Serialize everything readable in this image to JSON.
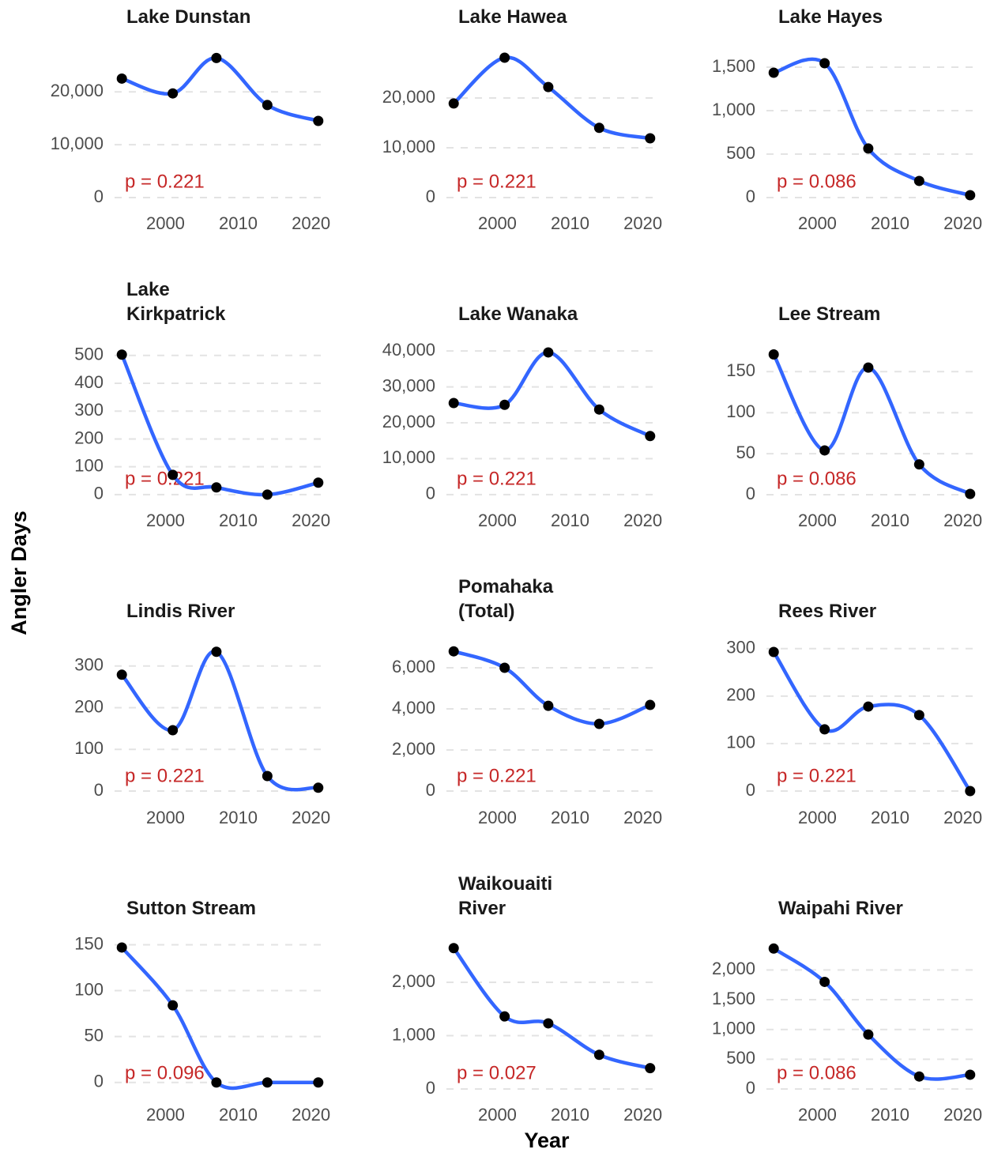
{
  "xlabel": "Year",
  "ylabel": "Angler Days",
  "chart_data": [
    {
      "type": "line",
      "title": "Lake Dunstan",
      "x": [
        1994,
        2001,
        2007,
        2014,
        2021
      ],
      "values": [
        22500,
        19700,
        26400,
        17500,
        14500
      ],
      "color": "#3366ff",
      "point_color": "#000000",
      "annotation": "p = 0.221",
      "xlim": [
        1993,
        2022
      ],
      "xticks": [
        2000,
        2010,
        2020
      ],
      "ylim": [
        -1200,
        28400
      ],
      "yticks": [
        0,
        {
          "value": 10000,
          "label": "10,000"
        },
        {
          "value": 20000,
          "label": "20,000"
        }
      ],
      "grid": true
    },
    {
      "type": "line",
      "title": "Lake Hawea",
      "x": [
        1994,
        2001,
        2007,
        2014,
        2021
      ],
      "values": [
        18900,
        28100,
        22200,
        14000,
        11900
      ],
      "color": "#3366ff",
      "point_color": "#000000",
      "annotation": "p = 0.221",
      "xlim": [
        1993,
        2022
      ],
      "xticks": [
        2000,
        2010,
        2020
      ],
      "ylim": [
        -1270,
        30160
      ],
      "yticks": [
        0,
        {
          "value": 10000,
          "label": "10,000"
        },
        {
          "value": 20000,
          "label": "20,000"
        }
      ],
      "grid": true
    },
    {
      "type": "line",
      "title": "Lake Hayes",
      "x": [
        1994,
        2001,
        2007,
        2014,
        2021
      ],
      "values": [
        1436,
        1545,
        564,
        191,
        27
      ],
      "color": "#3366ff",
      "point_color": "#000000",
      "annotation": "p = 0.086",
      "xlim": [
        1993,
        2022
      ],
      "xticks": [
        2000,
        2010,
        2020
      ],
      "ylim": [
        -73,
        1727
      ],
      "yticks": [
        0,
        500,
        {
          "value": 1000,
          "label": "1,000"
        },
        {
          "value": 1500,
          "label": "1,500"
        }
      ],
      "grid": true
    },
    {
      "type": "line",
      "title": "Lake Kirkpatrick",
      "x": [
        1994,
        2001,
        2007,
        2014,
        2021
      ],
      "values": [
        503,
        71,
        26,
        0,
        43
      ],
      "color": "#3366ff",
      "point_color": "#000000",
      "annotation": "p = 0.221",
      "xlim": [
        1993,
        2022
      ],
      "xticks": [
        2000,
        2010,
        2020
      ],
      "ylim": [
        -23,
        542
      ],
      "yticks": [
        0,
        100,
        200,
        300,
        400,
        500
      ],
      "grid": true
    },
    {
      "type": "line",
      "title": "Lake Wanaka",
      "x": [
        1994,
        2001,
        2007,
        2014,
        2021
      ],
      "values": [
        25500,
        25000,
        39600,
        23700,
        16300
      ],
      "color": "#3366ff",
      "point_color": "#000000",
      "annotation": "p = 0.221",
      "xlim": [
        1993,
        2022
      ],
      "xticks": [
        2000,
        2010,
        2020
      ],
      "ylim": [
        -1790,
        42010
      ],
      "yticks": [
        0,
        {
          "value": 10000,
          "label": "10,000"
        },
        {
          "value": 20000,
          "label": "20,000"
        },
        {
          "value": 30000,
          "label": "30,000"
        },
        {
          "value": 40000,
          "label": "40,000"
        }
      ],
      "grid": true
    },
    {
      "type": "line",
      "title": "Lee Stream",
      "x": [
        1994,
        2001,
        2007,
        2014,
        2021
      ],
      "values": [
        171,
        54,
        155,
        37,
        1
      ],
      "color": "#3366ff",
      "point_color": "#000000",
      "annotation": "p = 0.086",
      "xlim": [
        1993,
        2022
      ],
      "xticks": [
        2000,
        2010,
        2020
      ],
      "ylim": [
        -7.7,
        184
      ],
      "yticks": [
        0,
        50,
        100,
        150
      ],
      "grid": true
    },
    {
      "type": "line",
      "title": "Lindis River",
      "x": [
        1994,
        2001,
        2007,
        2014,
        2021
      ],
      "values": [
        279,
        146,
        334,
        36,
        8
      ],
      "color": "#3366ff",
      "point_color": "#000000",
      "annotation": "p = 0.221",
      "xlim": [
        1993,
        2022
      ],
      "xticks": [
        2000,
        2010,
        2020
      ],
      "ylim": [
        -17,
        362
      ],
      "yticks": [
        0,
        100,
        200,
        300
      ],
      "grid": true
    },
    {
      "type": "line",
      "title": "Pomahaka (Total)",
      "x": [
        1994,
        2001,
        2007,
        2014,
        2021
      ],
      "values": [
        6800,
        6000,
        4150,
        3270,
        4190
      ],
      "color": "#3366ff",
      "point_color": "#000000",
      "annotation": "p = 0.221",
      "xlim": [
        1993,
        2022
      ],
      "xticks": [
        2000,
        2010,
        2020
      ],
      "ylim": [
        -346,
        7346
      ],
      "yticks": [
        0,
        {
          "value": 2000,
          "label": "2,000"
        },
        {
          "value": 4000,
          "label": "4,000"
        },
        {
          "value": 6000,
          "label": "6,000"
        }
      ],
      "grid": true
    },
    {
      "type": "line",
      "title": "Rees River",
      "x": [
        1994,
        2001,
        2007,
        2014,
        2021
      ],
      "values": [
        293,
        130,
        178,
        160,
        0
      ],
      "color": "#3366ff",
      "point_color": "#000000",
      "annotation": "p = 0.221",
      "xlim": [
        1993,
        2022
      ],
      "xticks": [
        2000,
        2010,
        2020
      ],
      "ylim": [
        -15,
        318
      ],
      "yticks": [
        0,
        100,
        200,
        300
      ],
      "grid": true
    },
    {
      "type": "line",
      "title": "Sutton Stream",
      "x": [
        1994,
        2001,
        2007,
        2014,
        2021
      ],
      "values": [
        147,
        84,
        0,
        0,
        0
      ],
      "color": "#3366ff",
      "point_color": "#000000",
      "annotation": "p = 0.096",
      "xlim": [
        1993,
        2022
      ],
      "xticks": [
        2000,
        2010,
        2020
      ],
      "ylim": [
        -14,
        159
      ],
      "yticks": [
        0,
        50,
        100,
        150
      ],
      "grid": true
    },
    {
      "type": "line",
      "title": "Waikouaiti River",
      "x": [
        1994,
        2001,
        2007,
        2014,
        2021
      ],
      "values": [
        2640,
        1360,
        1230,
        640,
        390
      ],
      "color": "#3366ff",
      "point_color": "#000000",
      "annotation": "p = 0.027",
      "xlim": [
        1993,
        2022
      ],
      "xticks": [
        2000,
        2010,
        2020
      ],
      "ylim": [
        -119,
        2859
      ],
      "yticks": [
        0,
        {
          "value": 1000,
          "label": "1,000"
        },
        {
          "value": 2000,
          "label": "2,000"
        }
      ],
      "grid": true
    },
    {
      "type": "line",
      "title": "Waipahi River",
      "x": [
        1994,
        2001,
        2007,
        2014,
        2021
      ],
      "values": [
        2360,
        1800,
        915,
        210,
        240
      ],
      "color": "#3366ff",
      "point_color": "#000000",
      "annotation": "p = 0.086",
      "xlim": [
        1993,
        2022
      ],
      "xticks": [
        2000,
        2010,
        2020
      ],
      "ylim": [
        -106,
        2563
      ],
      "yticks": [
        0,
        500,
        {
          "value": 1000,
          "label": "1,000"
        },
        {
          "value": 1500,
          "label": "1,500"
        },
        {
          "value": 2000,
          "label": "2,000"
        }
      ],
      "grid": true
    }
  ]
}
